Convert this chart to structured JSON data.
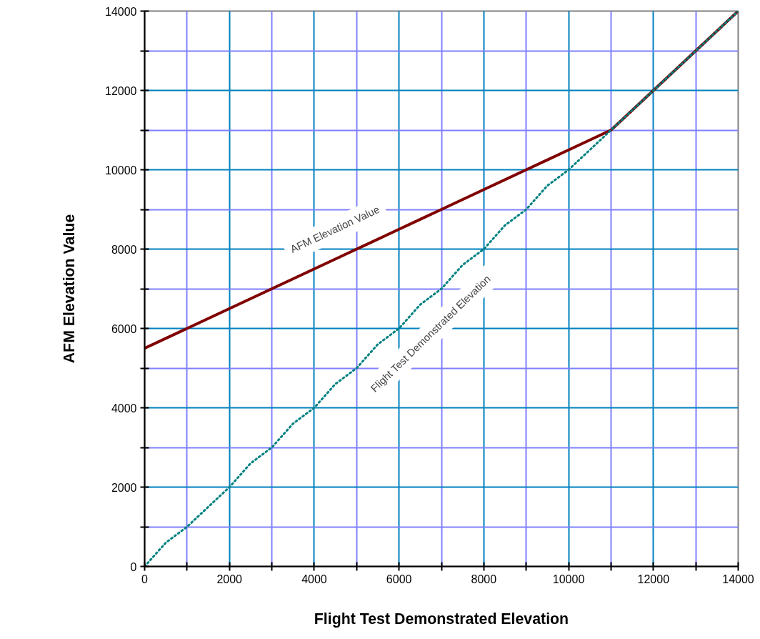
{
  "chart_data": {
    "type": "line",
    "xlabel": "Flight Test Demonstrated Elevation",
    "ylabel": "AFM Elevation Value",
    "xlim": [
      0,
      14000
    ],
    "ylim": [
      0,
      14000
    ],
    "xticks": [
      0,
      {
        "value": 1000,
        "label": null
      },
      2000,
      {
        "value": 3000,
        "label": null
      },
      4000,
      {
        "value": 5000,
        "label": null
      },
      6000,
      {
        "value": 7000,
        "label": null
      },
      8000,
      {
        "value": 9000,
        "label": null
      },
      10000,
      {
        "value": 11000,
        "label": null
      },
      12000,
      {
        "value": 13000,
        "label": null
      },
      14000
    ],
    "yticks": [
      0,
      {
        "value": 1000,
        "label": null
      },
      2000,
      {
        "value": 3000,
        "label": null
      },
      4000,
      {
        "value": 5000,
        "label": null
      },
      6000,
      {
        "value": 7000,
        "label": null
      },
      8000,
      {
        "value": 9000,
        "label": null
      },
      10000,
      {
        "value": 11000,
        "label": null
      },
      12000,
      {
        "value": 13000,
        "label": null
      },
      14000
    ],
    "grid": true,
    "marker": "none",
    "series": [
      {
        "name": "AFM Elevation Value",
        "color": "#800000",
        "line_style": "solid",
        "x": [
          0,
          1000,
          2000,
          3000,
          4000,
          5000,
          6000,
          6500,
          7000,
          8000,
          9000,
          10000,
          11000,
          12000,
          13000,
          14000
        ],
        "values": [
          5500,
          6000,
          6500,
          7000,
          7500,
          8000,
          8500,
          8750,
          9000,
          9500,
          10000,
          10500,
          11000,
          12000,
          13000,
          14000
        ]
      },
      {
        "name": "Flight Test Demonstrated Elevation",
        "color": "#008080",
        "line_style": "dotted",
        "x": [
          0,
          500,
          1000,
          1500,
          2000,
          2500,
          3000,
          3500,
          4000,
          4500,
          5000,
          5500,
          6000,
          6500,
          7000,
          7500,
          8000,
          8500,
          9000,
          9500,
          10000,
          10500,
          11000,
          12000,
          13000,
          14000
        ],
        "values": [
          0,
          600,
          1000,
          1500,
          2000,
          2600,
          3000,
          3600,
          4000,
          4600,
          5000,
          5600,
          6000,
          6600,
          7000,
          7600,
          8000,
          8600,
          9000,
          9600,
          10000,
          10500,
          11000,
          12000,
          13000,
          14000
        ]
      }
    ]
  }
}
